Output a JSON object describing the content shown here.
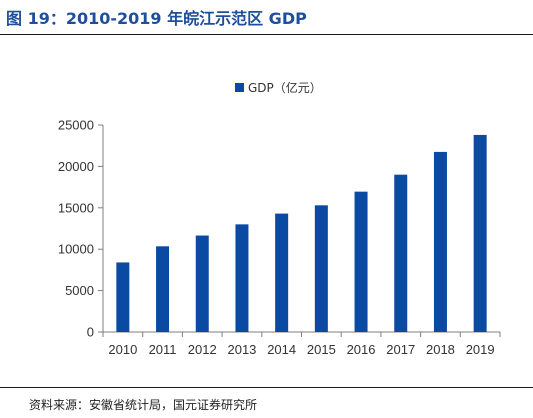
{
  "header": {
    "title": "图 19：2010-2019 年皖江示范区 GDP"
  },
  "footer": {
    "source": "资料来源：安徽省统计局，国元证券研究所"
  },
  "colors": {
    "title": "#1f4e9c",
    "bar": "#0a4aa3",
    "axis": "#7f7f7f"
  },
  "chart_data": {
    "type": "bar",
    "categories": [
      "2010",
      "2011",
      "2012",
      "2013",
      "2014",
      "2015",
      "2016",
      "2017",
      "2018",
      "2019"
    ],
    "series": [
      {
        "name": "GDP（亿元）",
        "values": [
          8400,
          10350,
          11650,
          13000,
          14300,
          15300,
          16950,
          19000,
          21750,
          23800
        ]
      }
    ],
    "ylim": [
      0,
      25000
    ],
    "yticks": [
      "0",
      "5000",
      "10000",
      "15000",
      "20000",
      "25000"
    ],
    "grid": false,
    "legend": "top-center"
  }
}
